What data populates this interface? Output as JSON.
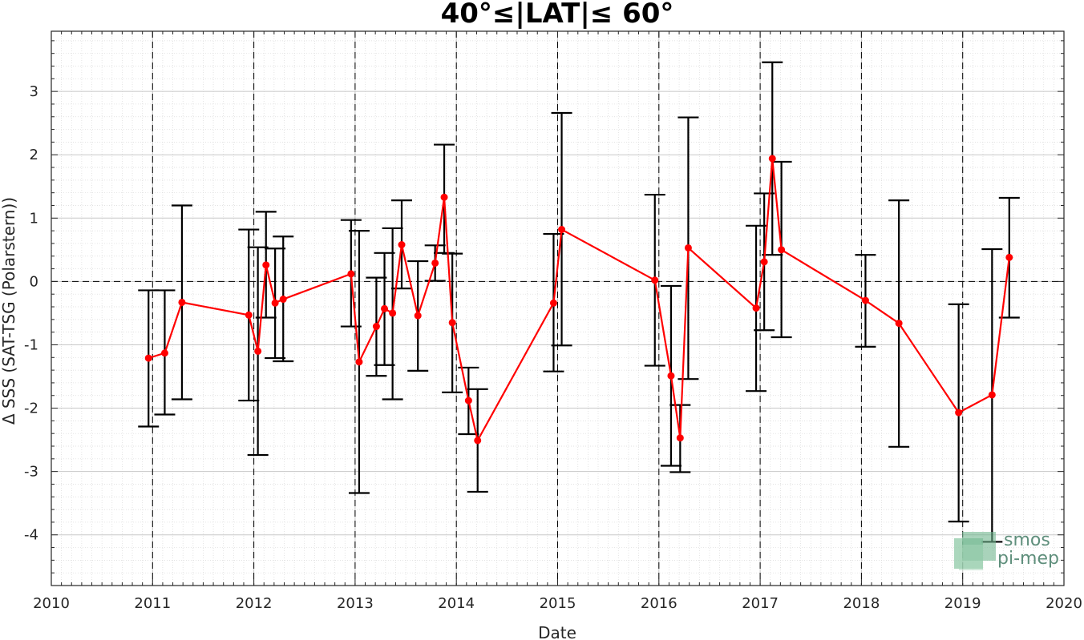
{
  "chart_data": {
    "type": "line",
    "title": "40°≤|LAT|≤ 60°",
    "xlabel": "Date",
    "ylabel": "Δ SSS (SAT-TSG (Polarstern))",
    "x_tick_labels": [
      "2010",
      "2011",
      "2012",
      "2013",
      "2014",
      "2015",
      "2016",
      "2017",
      "2018",
      "2019",
      "2020"
    ],
    "y_tick_labels": [
      "-4",
      "-3",
      "-2",
      "-1",
      "0",
      "1",
      "2",
      "3"
    ],
    "xlim": [
      2010,
      2020
    ],
    "ylim": [
      -4.8,
      3.95
    ],
    "grid": true,
    "minor_grid": true,
    "reference_line_y": 0,
    "series": [
      {
        "color": "#ff0000",
        "x": [
          2010.96,
          2011.12,
          2011.29,
          2011.95,
          2012.04,
          2012.12,
          2012.21,
          2012.29,
          2012.96,
          2013.04,
          2013.21,
          2013.29,
          2013.37,
          2013.46,
          2013.62,
          2013.79,
          2013.88,
          2013.96,
          2014.12,
          2014.21,
          2014.96,
          2015.04,
          2015.96,
          2016.12,
          2016.21,
          2016.29,
          2016.96,
          2017.04,
          2017.12,
          2017.21,
          2018.04,
          2018.37,
          2018.96,
          2019.29,
          2019.46
        ],
        "y": [
          -1.21,
          -1.13,
          -0.33,
          -0.53,
          -1.1,
          0.26,
          -0.34,
          -0.28,
          0.12,
          -1.27,
          -0.71,
          -0.43,
          -0.5,
          0.58,
          -0.54,
          0.29,
          1.33,
          -0.65,
          -1.88,
          -2.51,
          -0.34,
          0.82,
          0.02,
          -1.49,
          -2.47,
          0.53,
          -0.42,
          0.31,
          1.94,
          0.5,
          -0.3,
          -0.66,
          -2.07,
          -1.79,
          0.38
        ],
        "err_low": [
          -2.29,
          -2.1,
          -1.86,
          -1.88,
          -2.74,
          -0.57,
          -1.21,
          -1.26,
          -0.71,
          -3.34,
          -1.49,
          -1.32,
          -1.86,
          -0.11,
          -1.41,
          0.01,
          0.45,
          -1.75,
          -2.41,
          -3.32,
          -1.42,
          -1.01,
          -1.33,
          -2.91,
          -3.01,
          -1.54,
          -1.73,
          -0.77,
          0.42,
          -0.88,
          -1.03,
          -2.61,
          -3.79,
          -4.11,
          -0.57
        ],
        "err_high": [
          -0.14,
          -0.14,
          1.2,
          0.82,
          0.54,
          1.1,
          0.52,
          0.71,
          0.97,
          0.8,
          0.06,
          0.45,
          0.84,
          1.28,
          0.32,
          0.57,
          2.16,
          0.44,
          -1.36,
          -1.7,
          0.75,
          2.66,
          1.37,
          -0.07,
          -1.95,
          2.59,
          0.88,
          1.39,
          3.46,
          1.89,
          0.42,
          1.28,
          -0.36,
          0.51,
          1.32
        ]
      }
    ]
  },
  "logo": {
    "line1": "smos",
    "line2": "pi-mep"
  }
}
